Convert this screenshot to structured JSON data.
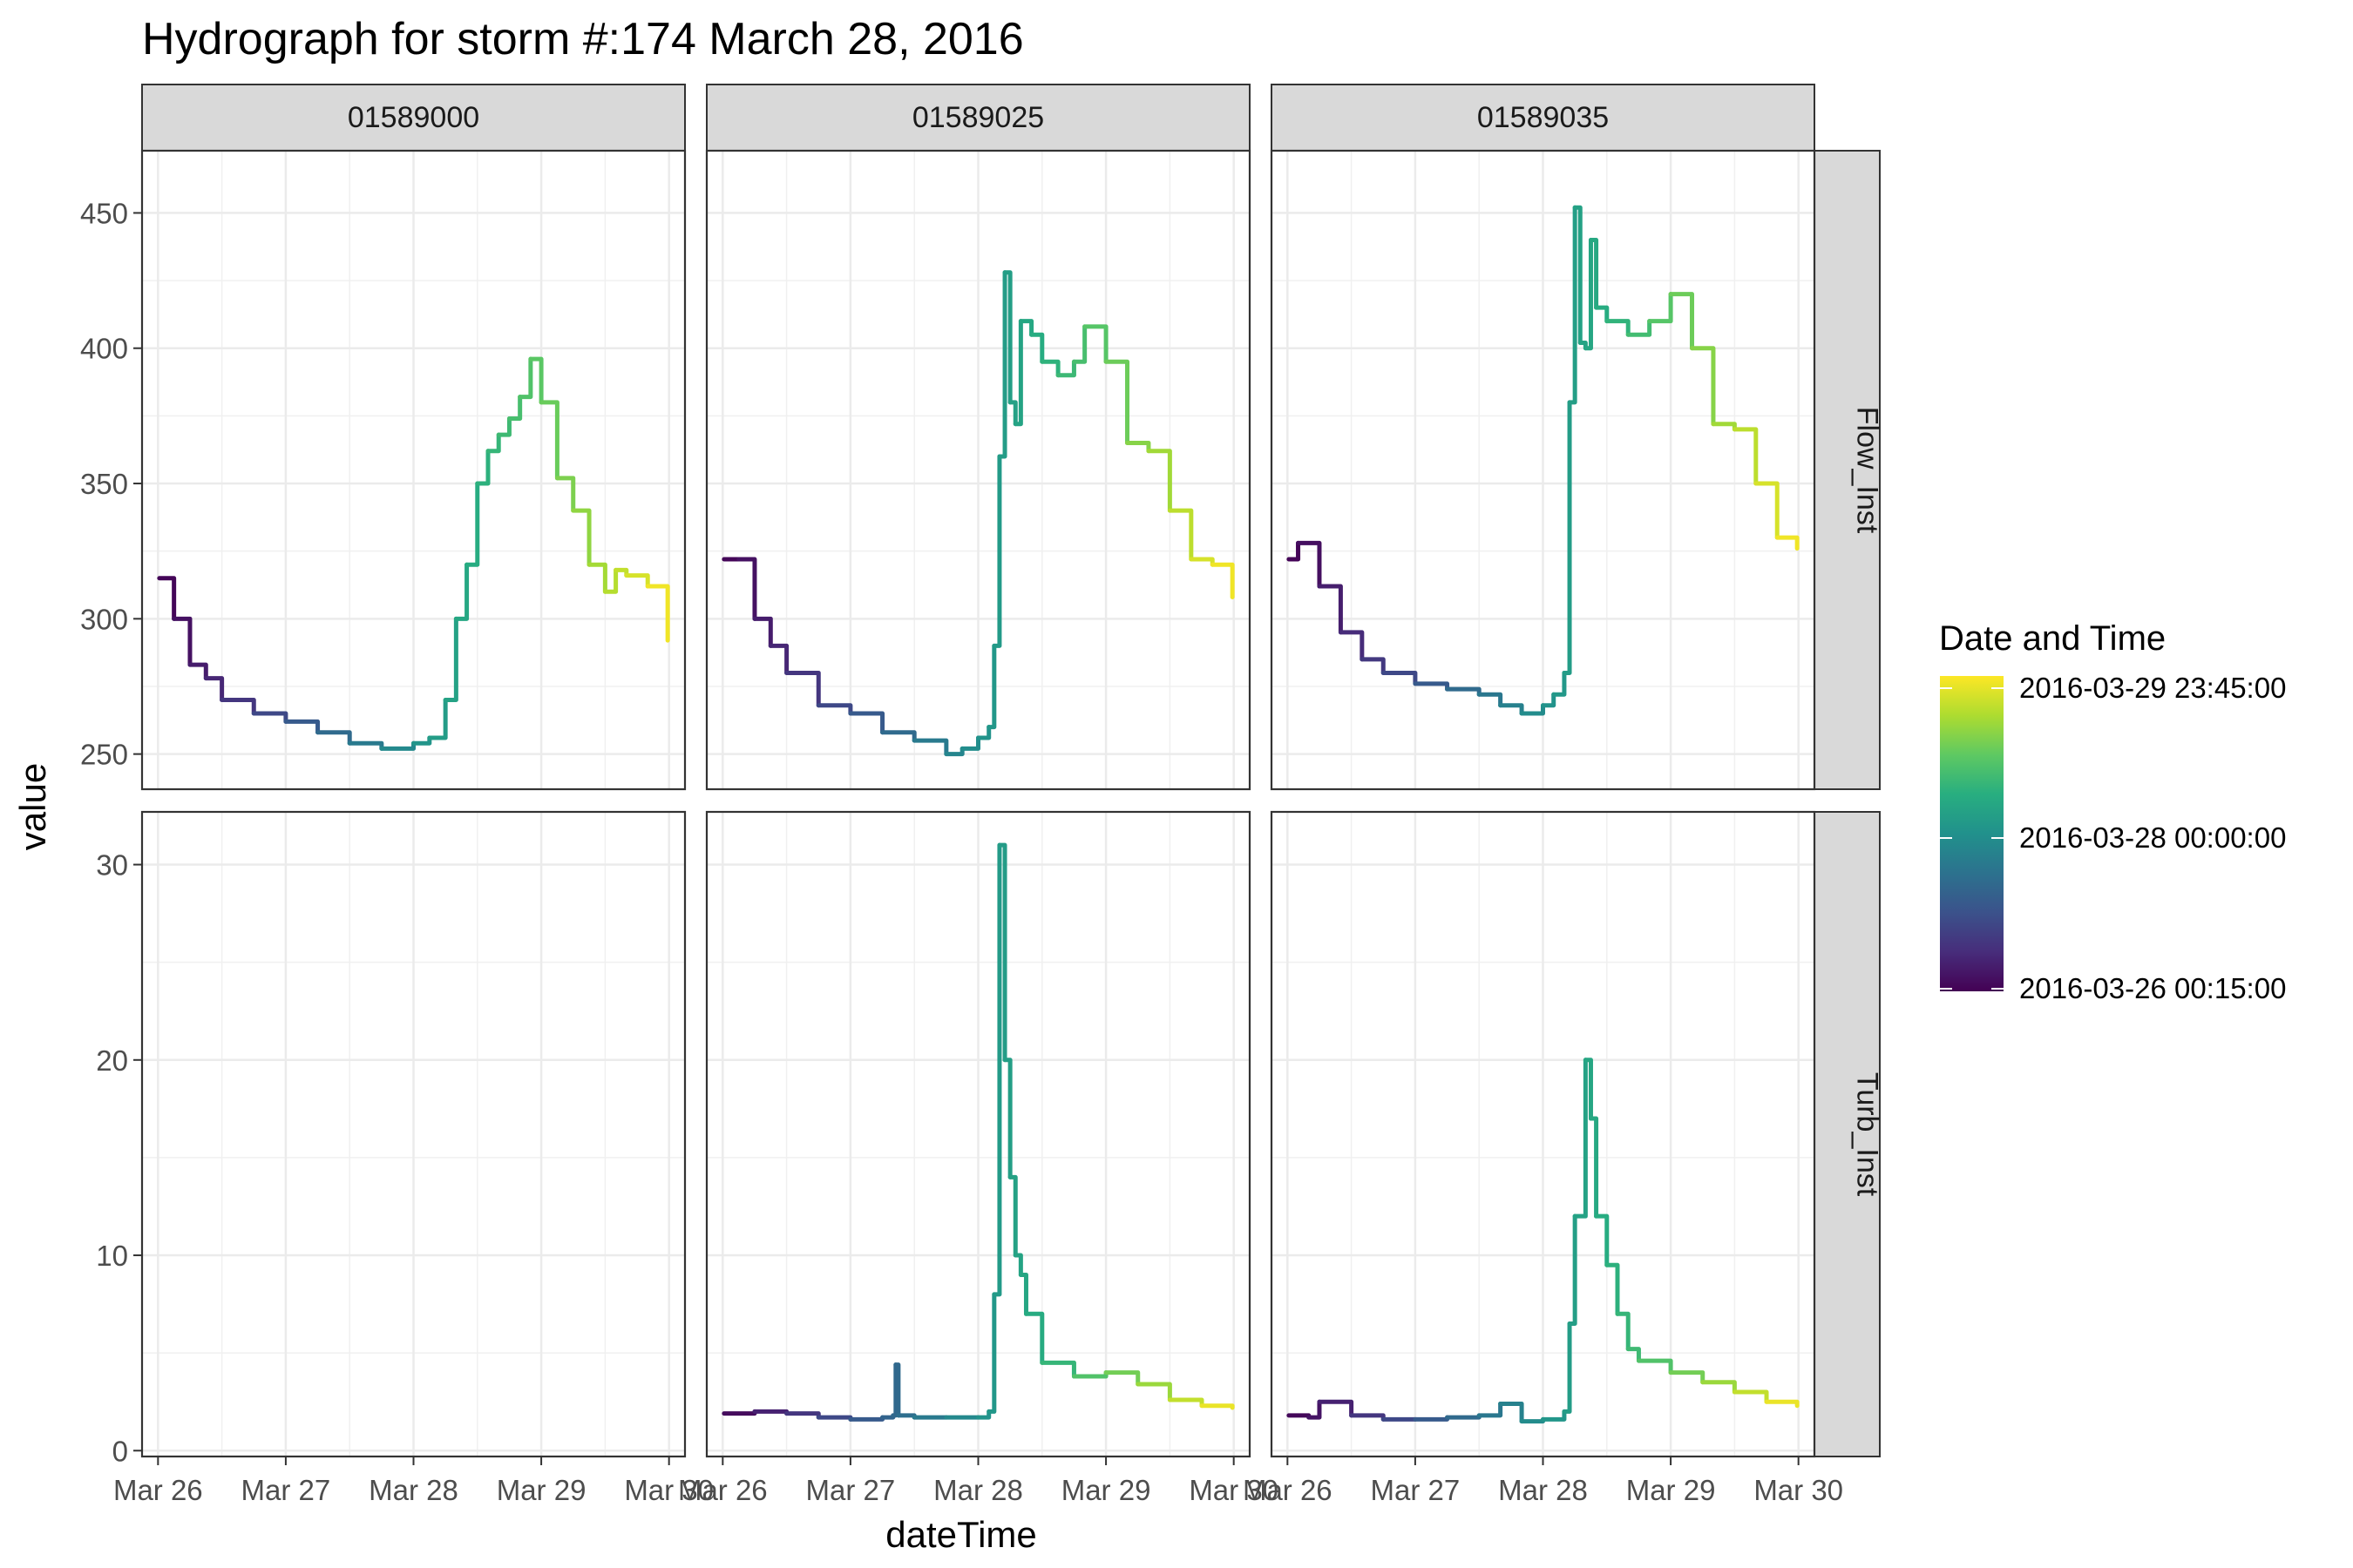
{
  "chart_data": {
    "type": "line",
    "title": "Hydrograph for storm #:174   March 28, 2016",
    "xlabel": "dateTime",
    "ylabel": "value",
    "x_ticks": [
      "Mar 26",
      "Mar 27",
      "Mar 28",
      "Mar 29",
      "Mar 30"
    ],
    "x_range": [
      "2016-03-25 21:00",
      "2016-03-30 03:00"
    ],
    "columns": [
      "01589000",
      "01589025",
      "01589035"
    ],
    "rows": [
      {
        "label": "Flow_Inst",
        "ylim": [
          237,
          473
        ],
        "yticks": [
          250,
          300,
          350,
          400,
          450
        ]
      },
      {
        "label": "Turb_Inst",
        "ylim": [
          -0.3,
          32.7
        ],
        "yticks": [
          0,
          10,
          20,
          30
        ]
      }
    ],
    "grid": true,
    "legend": {
      "title": "Date and Time",
      "position": "right",
      "labels": [
        "2016-03-29 23:45:00",
        "2016-03-28 00:00:00",
        "2016-03-26 00:15:00"
      ],
      "colors": [
        "#440154",
        "#472d7b",
        "#3b528b",
        "#2c728e",
        "#21918c",
        "#28ae80",
        "#5ec962",
        "#addc30",
        "#fde725"
      ]
    },
    "series": [
      {
        "column": "01589000",
        "row": "Flow_Inst",
        "x": [
          "2016-03-26 00:15",
          "2016-03-26 03:00",
          "2016-03-26 06:00",
          "2016-03-26 09:00",
          "2016-03-26 12:00",
          "2016-03-26 18:00",
          "2016-03-27 00:00",
          "2016-03-27 06:00",
          "2016-03-27 12:00",
          "2016-03-27 18:00",
          "2016-03-28 00:00",
          "2016-03-28 03:00",
          "2016-03-28 06:00",
          "2016-03-28 08:00",
          "2016-03-28 10:00",
          "2016-03-28 12:00",
          "2016-03-28 14:00",
          "2016-03-28 16:00",
          "2016-03-28 18:00",
          "2016-03-28 20:00",
          "2016-03-28 22:00",
          "2016-03-29 00:00",
          "2016-03-29 03:00",
          "2016-03-29 06:00",
          "2016-03-29 09:00",
          "2016-03-29 12:00",
          "2016-03-29 14:00",
          "2016-03-29 16:00",
          "2016-03-29 20:00",
          "2016-03-29 23:45"
        ],
        "y": [
          315,
          300,
          283,
          278,
          270,
          265,
          262,
          258,
          254,
          252,
          254,
          256,
          270,
          300,
          320,
          350,
          362,
          368,
          374,
          382,
          396,
          380,
          352,
          340,
          320,
          310,
          318,
          316,
          312,
          292
        ]
      },
      {
        "column": "01589025",
        "row": "Flow_Inst",
        "x": [
          "2016-03-26 00:15",
          "2016-03-26 03:00",
          "2016-03-26 06:00",
          "2016-03-26 09:00",
          "2016-03-26 12:00",
          "2016-03-26 18:00",
          "2016-03-27 00:00",
          "2016-03-27 06:00",
          "2016-03-27 12:00",
          "2016-03-27 18:00",
          "2016-03-27 21:00",
          "2016-03-28 00:00",
          "2016-03-28 02:00",
          "2016-03-28 03:00",
          "2016-03-28 04:00",
          "2016-03-28 05:00",
          "2016-03-28 06:00",
          "2016-03-28 07:00",
          "2016-03-28 08:00",
          "2016-03-28 10:00",
          "2016-03-28 12:00",
          "2016-03-28 15:00",
          "2016-03-28 18:00",
          "2016-03-28 20:00",
          "2016-03-29 00:00",
          "2016-03-29 04:00",
          "2016-03-29 08:00",
          "2016-03-29 12:00",
          "2016-03-29 16:00",
          "2016-03-29 20:00",
          "2016-03-29 23:45"
        ],
        "y": [
          322,
          322,
          300,
          290,
          280,
          268,
          265,
          258,
          255,
          250,
          252,
          256,
          260,
          290,
          360,
          428,
          380,
          372,
          410,
          405,
          395,
          390,
          395,
          408,
          395,
          365,
          362,
          340,
          322,
          320,
          308
        ]
      },
      {
        "column": "01589035",
        "row": "Flow_Inst",
        "x": [
          "2016-03-26 00:15",
          "2016-03-26 02:00",
          "2016-03-26 06:00",
          "2016-03-26 10:00",
          "2016-03-26 14:00",
          "2016-03-26 18:00",
          "2016-03-27 00:00",
          "2016-03-27 06:00",
          "2016-03-27 12:00",
          "2016-03-27 16:00",
          "2016-03-27 20:00",
          "2016-03-28 00:00",
          "2016-03-28 02:00",
          "2016-03-28 04:00",
          "2016-03-28 05:00",
          "2016-03-28 06:00",
          "2016-03-28 07:00",
          "2016-03-28 08:00",
          "2016-03-28 09:00",
          "2016-03-28 10:00",
          "2016-03-28 12:00",
          "2016-03-28 16:00",
          "2016-03-28 20:00",
          "2016-03-29 00:00",
          "2016-03-29 04:00",
          "2016-03-29 08:00",
          "2016-03-29 12:00",
          "2016-03-29 16:00",
          "2016-03-29 20:00",
          "2016-03-29 23:45"
        ],
        "y": [
          322,
          328,
          312,
          295,
          285,
          280,
          276,
          274,
          272,
          268,
          265,
          268,
          272,
          280,
          380,
          452,
          402,
          400,
          440,
          415,
          410,
          405,
          410,
          420,
          400,
          372,
          370,
          350,
          330,
          326
        ]
      },
      {
        "column": "01589025",
        "row": "Turb_Inst",
        "x": [
          "2016-03-26 00:15",
          "2016-03-26 06:00",
          "2016-03-26 12:00",
          "2016-03-26 18:00",
          "2016-03-27 00:00",
          "2016-03-27 06:00",
          "2016-03-27 08:00",
          "2016-03-27 08:30",
          "2016-03-27 09:00",
          "2016-03-27 12:00",
          "2016-03-27 18:00",
          "2016-03-28 00:00",
          "2016-03-28 02:00",
          "2016-03-28 03:00",
          "2016-03-28 04:00",
          "2016-03-28 05:00",
          "2016-03-28 06:00",
          "2016-03-28 07:00",
          "2016-03-28 08:00",
          "2016-03-28 09:00",
          "2016-03-28 12:00",
          "2016-03-28 18:00",
          "2016-03-29 00:00",
          "2016-03-29 06:00",
          "2016-03-29 12:00",
          "2016-03-29 18:00",
          "2016-03-29 23:45"
        ],
        "y": [
          1.9,
          2.0,
          1.9,
          1.7,
          1.6,
          1.7,
          1.8,
          4.4,
          1.8,
          1.7,
          1.7,
          1.7,
          2.0,
          8.0,
          31.0,
          20.0,
          14.0,
          10.0,
          9.0,
          7.0,
          4.5,
          3.8,
          4.0,
          3.4,
          2.6,
          2.3,
          2.2
        ]
      },
      {
        "column": "01589035",
        "row": "Turb_Inst",
        "x": [
          "2016-03-26 00:15",
          "2016-03-26 04:00",
          "2016-03-26 06:00",
          "2016-03-26 12:00",
          "2016-03-26 18:00",
          "2016-03-27 00:00",
          "2016-03-27 06:00",
          "2016-03-27 12:00",
          "2016-03-27 16:00",
          "2016-03-27 20:00",
          "2016-03-28 00:00",
          "2016-03-28 04:00",
          "2016-03-28 05:00",
          "2016-03-28 06:00",
          "2016-03-28 08:00",
          "2016-03-28 09:00",
          "2016-03-28 10:00",
          "2016-03-28 12:00",
          "2016-03-28 14:00",
          "2016-03-28 16:00",
          "2016-03-28 18:00",
          "2016-03-29 00:00",
          "2016-03-29 06:00",
          "2016-03-29 12:00",
          "2016-03-29 18:00",
          "2016-03-29 23:45"
        ],
        "y": [
          1.8,
          1.7,
          2.5,
          1.8,
          1.6,
          1.6,
          1.7,
          1.8,
          2.4,
          1.5,
          1.6,
          2.0,
          6.5,
          12.0,
          20.0,
          17.0,
          12.0,
          9.5,
          7.0,
          5.2,
          4.6,
          4.0,
          3.5,
          3.0,
          2.5,
          2.3
        ]
      }
    ]
  }
}
